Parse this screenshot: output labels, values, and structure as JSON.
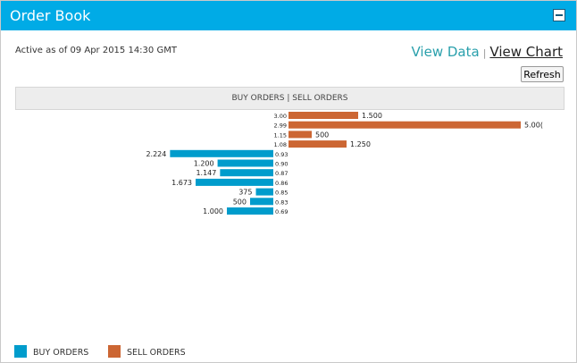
{
  "header": {
    "title": "Order Book"
  },
  "meta": {
    "active_text": "Active as of 09 Apr 2015 14:30 GMT"
  },
  "links": {
    "view_data": "View Data",
    "separator": "|",
    "view_chart": "View Chart"
  },
  "refresh_label": "Refresh",
  "colors": {
    "header": "#00abe6",
    "buy": "#009ccc",
    "sell": "#cc6633"
  },
  "chart_data": {
    "type": "bar",
    "title": "BUY ORDERS | SELL ORDERS",
    "legend": [
      "BUY ORDERS",
      "SELL ORDERS"
    ],
    "legend_position": "bottom-left",
    "sell": [
      {
        "price": "3.00",
        "qty": 1500,
        "label": "1.500"
      },
      {
        "price": "2.99",
        "qty": 5000,
        "label": "5.00("
      },
      {
        "price": "1.15",
        "qty": 500,
        "label": "500"
      },
      {
        "price": "1.08",
        "qty": 1250,
        "label": "1.250"
      }
    ],
    "buy": [
      {
        "price": "0.93",
        "qty": 2224,
        "label": "2.224"
      },
      {
        "price": "0.90",
        "qty": 1200,
        "label": "1.200"
      },
      {
        "price": "0.87",
        "qty": 1147,
        "label": "1.147"
      },
      {
        "price": "0.86",
        "qty": 1673,
        "label": "1.673"
      },
      {
        "price": "0.85",
        "qty": 375,
        "label": "375"
      },
      {
        "price": "0.83",
        "qty": 500,
        "label": "500"
      },
      {
        "price": "0.69",
        "qty": 1000,
        "label": "1.000"
      }
    ]
  }
}
